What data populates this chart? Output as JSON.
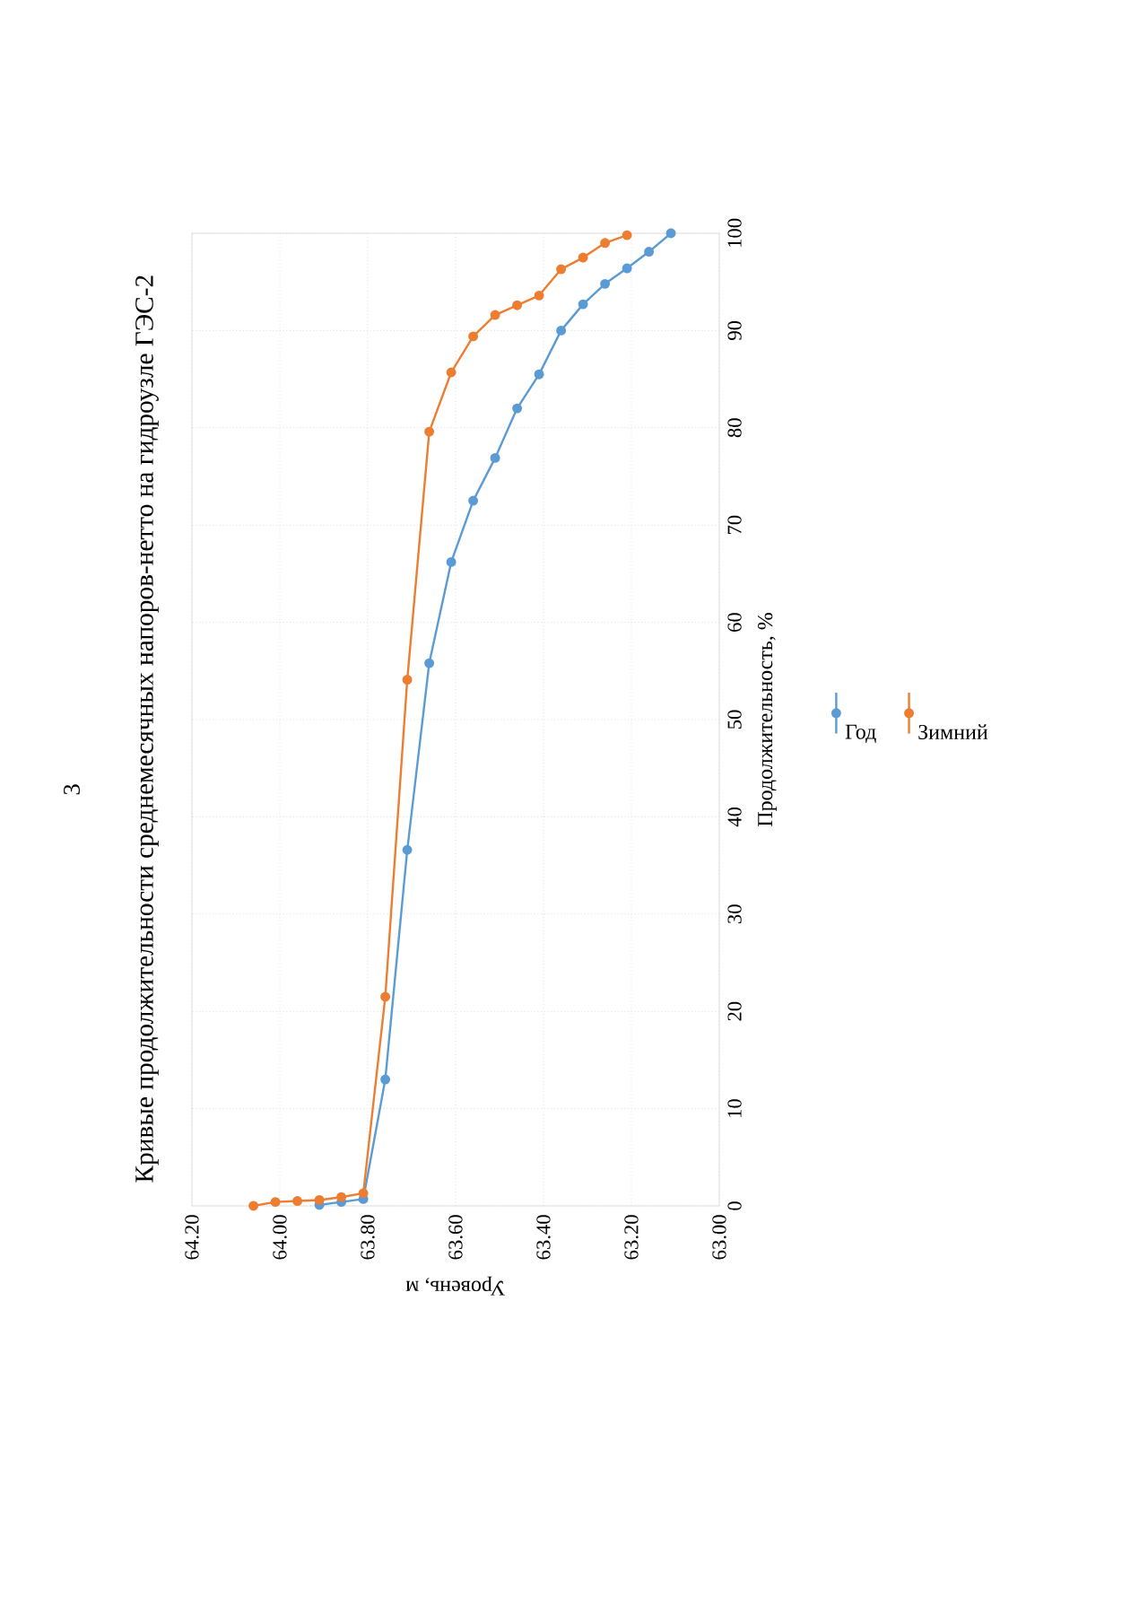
{
  "chart_data": {
    "type": "line",
    "title": "Кривые продолжительности среднемесячных напоров-нетто на гидроузле ГЭС-2",
    "xlabel": "Уровень, м",
    "ylabel": "Продолжительность, %",
    "annotations": [
      "3"
    ],
    "xlim": [
      64.2,
      63.0
    ],
    "xticks": [
      {
        "value": 64.2,
        "label": "64.20"
      },
      {
        "value": 64.0,
        "label": "64.00"
      },
      {
        "value": 63.8,
        "label": "63.80"
      },
      {
        "value": 63.6,
        "label": "63.60"
      },
      {
        "value": 63.4,
        "label": "63.40"
      },
      {
        "value": 63.2,
        "label": "63.20"
      },
      {
        "value": 63.0,
        "label": "63.00"
      }
    ],
    "ylim": [
      0,
      100
    ],
    "yticks": [
      0,
      10,
      20,
      30,
      40,
      50,
      60,
      70,
      80,
      90,
      100
    ],
    "grid": true,
    "legend": "right",
    "marker": "circle",
    "line_style": "solid",
    "series": [
      {
        "name": "Год",
        "color": "#5b9bd5",
        "x": [
          63.91,
          63.86,
          63.81,
          63.76,
          63.71,
          63.66,
          63.61,
          63.56,
          63.51,
          63.46,
          63.41,
          63.36,
          63.31,
          63.26,
          63.21,
          63.16,
          63.11
        ],
        "values": [
          0.1,
          0.4,
          0.7,
          13.0,
          36.6,
          55.8,
          66.2,
          72.5,
          76.9,
          82.0,
          85.5,
          90.0,
          92.7,
          94.8,
          96.4,
          98.1,
          100
        ]
      },
      {
        "name": "Зимний",
        "color": "#ed7d31",
        "x": [
          64.06,
          64.01,
          63.96,
          63.91,
          63.86,
          63.81,
          63.76,
          63.71,
          63.66,
          63.61,
          63.56,
          63.51,
          63.46,
          63.41,
          63.36,
          63.31,
          63.26,
          63.21
        ],
        "values": [
          0,
          0.4,
          0.5,
          0.6,
          0.9,
          1.3,
          21.5,
          54.1,
          79.6,
          85.7,
          89.4,
          91.6,
          92.6,
          93.6,
          96.3,
          97.5,
          99.0,
          99.8
        ]
      }
    ]
  }
}
